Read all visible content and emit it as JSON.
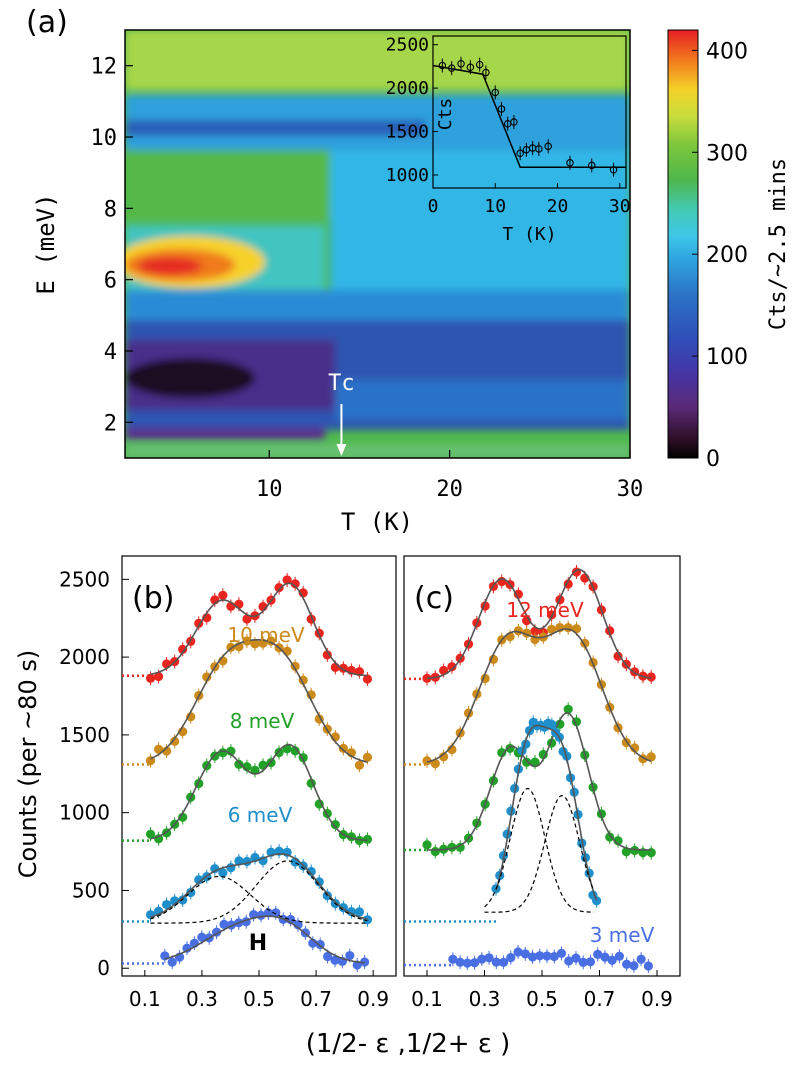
{
  "chart_data": [
    {
      "panel": "(a)",
      "type": "heatmap",
      "xlabel": "T (K)",
      "ylabel": "E (meV)",
      "xlim": [
        2,
        30
      ],
      "ylim": [
        1,
        13
      ],
      "xticks": [
        "10",
        "20",
        "30"
      ],
      "yticks": [
        "2",
        "4",
        "6",
        "8",
        "10",
        "12"
      ],
      "colorbar": {
        "label": "Cts/~2.5 mins",
        "range": [
          0,
          420
        ],
        "ticks": [
          "0",
          "100",
          "200",
          "300",
          "400"
        ]
      },
      "annotation": "Tc",
      "annotation_x": 14,
      "features": [
        {
          "name": "low-energy gap",
          "E": [
            2.5,
            4
          ],
          "T": [
            2,
            12
          ],
          "level": 20
        },
        {
          "name": "resonance",
          "E": [
            5.8,
            7
          ],
          "T": [
            2,
            10
          ],
          "level": 390
        },
        {
          "name": "high-energy band",
          "E": [
            7,
            13
          ],
          "T": [
            2,
            30
          ],
          "level": 260
        }
      ],
      "inset": {
        "type": "scatter",
        "xlabel": "T (K)",
        "ylabel": "Cts",
        "xlim": [
          0,
          31
        ],
        "ylim": [
          850,
          2600
        ],
        "xticks": [
          "0",
          "10",
          "20",
          "30"
        ],
        "yticks": [
          "1000",
          "1500",
          "2000",
          "2500"
        ],
        "x": [
          1.5,
          3,
          4.5,
          6,
          7.5,
          8.5,
          10,
          11,
          12,
          13,
          14,
          15,
          16,
          17,
          18.5,
          22,
          25.5,
          29
        ],
        "y": [
          2260,
          2230,
          2280,
          2240,
          2270,
          2180,
          1950,
          1760,
          1590,
          1610,
          1250,
          1290,
          1310,
          1300,
          1330,
          1140,
          1110,
          1060
        ],
        "fit": {
          "x": [
            0,
            8,
            14,
            31
          ],
          "y": [
            2260,
            2160,
            1090,
            1090
          ]
        }
      }
    },
    {
      "panel": "(b)",
      "type": "scatter",
      "xlabel": "(1/2- ε ,1/2+ ε )",
      "ylabel": "Counts (per ~80 s)",
      "xlim": [
        0.02,
        0.98
      ],
      "ylim": [
        -50,
        2650
      ],
      "xticks": [
        "0.1",
        "0.3",
        "0.5",
        "0.7",
        "0.9"
      ],
      "yticks": [
        "0",
        "500",
        "1000",
        "1500",
        "2000",
        "2500"
      ],
      "label_H": "H",
      "series": [
        {
          "name": "",
          "color": "#e8261f",
          "offset": 1880,
          "peaks": [
            [
              0.37,
              0.09,
              480
            ],
            [
              0.61,
              0.08,
              580
            ]
          ]
        },
        {
          "name": "10 meV",
          "color": "#cc8a1b",
          "offset": 1310,
          "peaks": [
            [
              0.38,
              0.11,
              590
            ],
            [
              0.58,
              0.11,
              620
            ]
          ]
        },
        {
          "name": "8 meV",
          "color": "#22a128",
          "offset": 820,
          "peaks": [
            [
              0.37,
              0.09,
              570
            ],
            [
              0.61,
              0.08,
              600
            ]
          ]
        },
        {
          "name": "6 meV",
          "color": "#1f8fcc",
          "offset": 300,
          "peaks": [
            [
              0.36,
              0.11,
              300
            ],
            [
              0.6,
              0.11,
              400
            ]
          ]
        },
        {
          "name": "",
          "color": "#4a6fe3",
          "offset": 30,
          "peaks": [
            [
              0.43,
              0.13,
              220
            ],
            [
              0.6,
              0.1,
              180
            ]
          ]
        }
      ]
    },
    {
      "panel": "(c)",
      "type": "scatter",
      "xlim": [
        0.02,
        0.98
      ],
      "ylim": [
        -50,
        2650
      ],
      "xticks": [
        "0.1",
        "0.3",
        "0.5",
        "0.7",
        "0.9"
      ],
      "series": [
        {
          "name": "12 meV",
          "color": "#e8261f",
          "offset": 1860,
          "peaks": [
            [
              0.36,
              0.08,
              640
            ],
            [
              0.63,
              0.08,
              700
            ]
          ]
        },
        {
          "name": "",
          "color": "#cc8a1b",
          "offset": 1310,
          "peaks": [
            [
              0.38,
              0.1,
              780
            ],
            [
              0.61,
              0.1,
              800
            ]
          ]
        },
        {
          "name": "",
          "color": "#22a128",
          "offset": 760,
          "peaks": [
            [
              0.39,
              0.07,
              650
            ],
            [
              0.59,
              0.07,
              870
            ]
          ]
        },
        {
          "name": "",
          "color": "#1f8fcc",
          "offset": 300,
          "peaks": [
            [
              0.45,
              0.06,
              1060
            ],
            [
              0.57,
              0.06,
              1000
            ]
          ]
        },
        {
          "name": "3 meV",
          "color": "#4a6fe3",
          "offset": 20,
          "peaks": [
            [
              0.5,
              0.2,
              60
            ]
          ]
        }
      ]
    }
  ]
}
